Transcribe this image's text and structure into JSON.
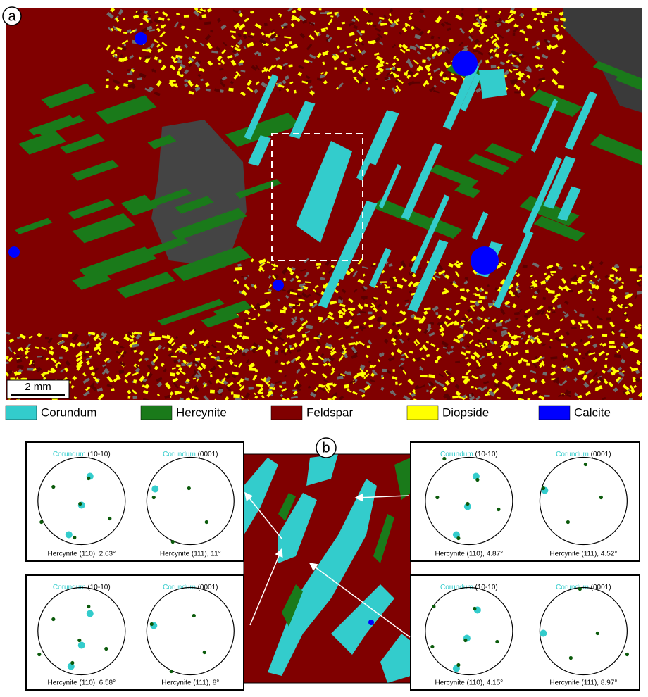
{
  "labels": {
    "a": "a",
    "b": "b"
  },
  "scale_bar": "2 mm",
  "legend": [
    {
      "name": "Corundum",
      "color": "#33cccc"
    },
    {
      "name": "Hercynite",
      "color": "#1a7a1a"
    },
    {
      "name": "Feldspar",
      "color": "#800000"
    },
    {
      "name": "Diopside",
      "color": "#ffff00"
    },
    {
      "name": "Calcite",
      "color": "#0000ff"
    }
  ],
  "panels": [
    {
      "figures": [
        {
          "phase": "Corundum",
          "plane": "(10-10)",
          "caption": "Hercynite (110), 2.63°"
        },
        {
          "phase": "Corundum",
          "plane": "(0001)",
          "caption": "Hercynite (111), 11°"
        }
      ]
    },
    {
      "figures": [
        {
          "phase": "Corundum",
          "plane": "(10-10)",
          "caption": "Hercynite (110), 4.87°"
        },
        {
          "phase": "Corundum",
          "plane": "(0001)",
          "caption": "Hercynite (111), 4.52°"
        }
      ]
    },
    {
      "figures": [
        {
          "phase": "Corundum",
          "plane": "(10-10)",
          "caption": "Hercynite (110), 6.58°"
        },
        {
          "phase": "Corundum",
          "plane": "(0001)",
          "caption": "Hercynite (111), 8°"
        }
      ]
    },
    {
      "figures": [
        {
          "phase": "Corundum",
          "plane": "(10-10)",
          "caption": "Hercynite (110), 4.15°"
        },
        {
          "phase": "Corundum",
          "plane": "(0001)",
          "caption": "Hercynite (111), 8.97°"
        }
      ]
    }
  ]
}
